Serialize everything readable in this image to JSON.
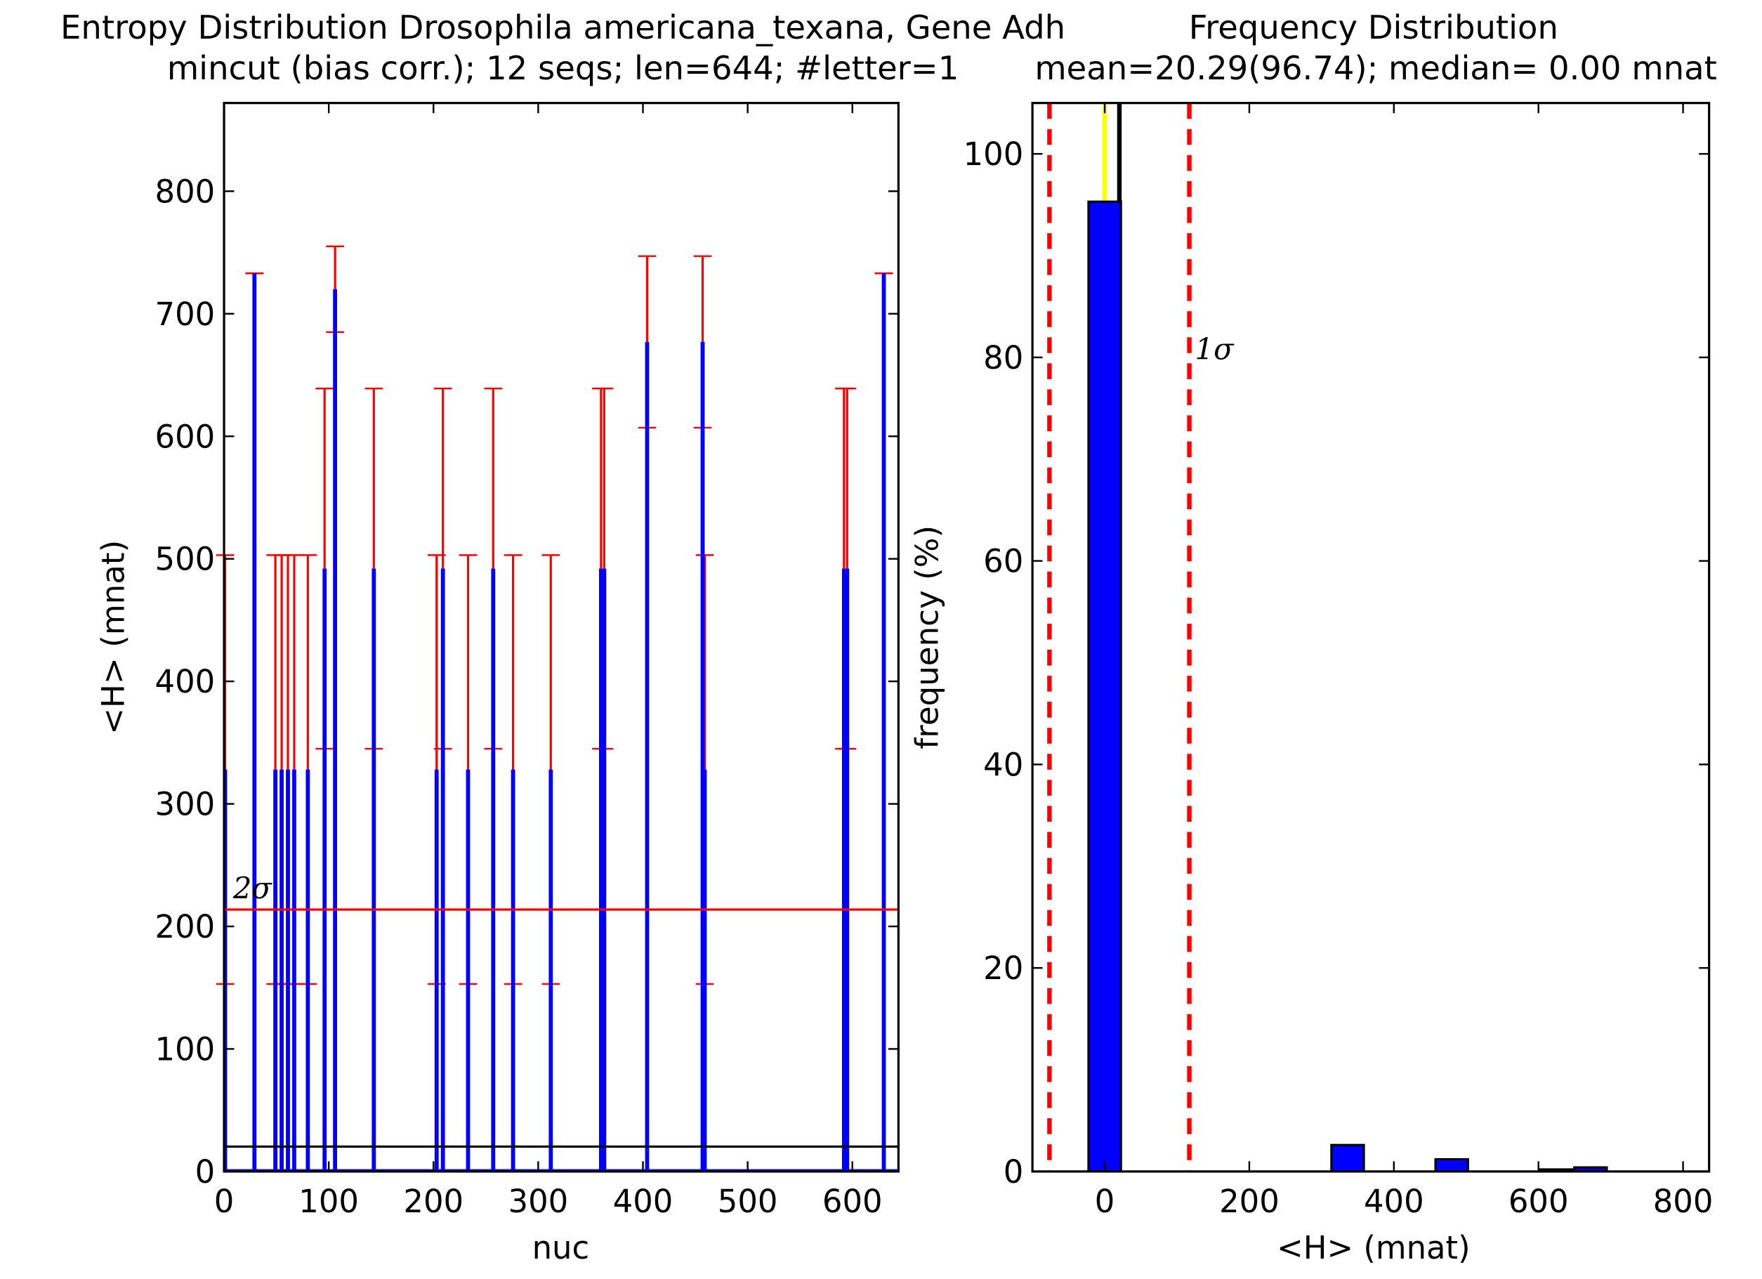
{
  "chart_data": [
    {
      "type": "bar",
      "title": "Entropy Distribution Drosophila americana_texana, Gene Adh",
      "subtitle": "mincut (bias corr.); 12 seqs; len=644; #letter=1",
      "xlabel": "nuc",
      "ylabel": "<H> (mnat)",
      "x": [
        1,
        29,
        49,
        55,
        61,
        67,
        80,
        96,
        106,
        143,
        203,
        209,
        233,
        257,
        276,
        312,
        360,
        363,
        404,
        457,
        459,
        592,
        595,
        630
      ],
      "values": [
        328,
        733,
        328,
        328,
        328,
        328,
        328,
        492,
        720,
        492,
        328,
        492,
        328,
        492,
        328,
        328,
        492,
        492,
        677,
        677,
        328,
        492,
        492,
        733
      ],
      "errors": [
        175,
        0,
        175,
        175,
        175,
        175,
        175,
        147,
        35,
        147,
        175,
        147,
        175,
        147,
        175,
        175,
        147,
        147,
        70,
        70,
        175,
        147,
        147,
        0
      ],
      "color": "#0000ff",
      "error_color": "#ff0000",
      "hlines": [
        {
          "value": 213.77,
          "color": "#ff0000",
          "label": "2σ"
        },
        {
          "value": 20.29,
          "color": "#000000"
        }
      ],
      "xlim": [
        0,
        644
      ],
      "ylim": [
        0,
        872
      ],
      "xticks": [
        0,
        100,
        200,
        300,
        400,
        500,
        600
      ],
      "yticks": [
        0,
        100,
        200,
        300,
        400,
        500,
        600,
        700,
        800
      ]
    },
    {
      "type": "histogram",
      "title": "Frequency Distribution",
      "subtitle": "mean=20.29(96.74); median= 0.00 mnat",
      "xlabel": "<H> (mnat)",
      "ylabel": "frequency (%)",
      "bins": [
        -24,
        24,
        72,
        120,
        168,
        216,
        264,
        312,
        360,
        408,
        456,
        504,
        552,
        600,
        648,
        696
      ],
      "values": [
        95.3,
        0,
        0,
        0,
        0,
        0,
        0,
        2.6,
        0,
        0,
        1.2,
        0,
        0,
        0.2,
        0.4
      ],
      "color": "#0000ff",
      "vlines": [
        {
          "value": 0,
          "color": "#ffff00"
        },
        {
          "value": 20.29,
          "color": "#000000"
        },
        {
          "value": -76.45,
          "color": "#ff0000",
          "dashed": true
        },
        {
          "value": 117.03,
          "color": "#ff0000",
          "dashed": true,
          "label": "1σ"
        }
      ],
      "xlim": [
        -100,
        836
      ],
      "ylim": [
        0,
        105
      ],
      "xticks": [
        0,
        200,
        400,
        600,
        800
      ],
      "yticks": [
        0,
        20,
        40,
        60,
        80,
        100
      ]
    }
  ]
}
